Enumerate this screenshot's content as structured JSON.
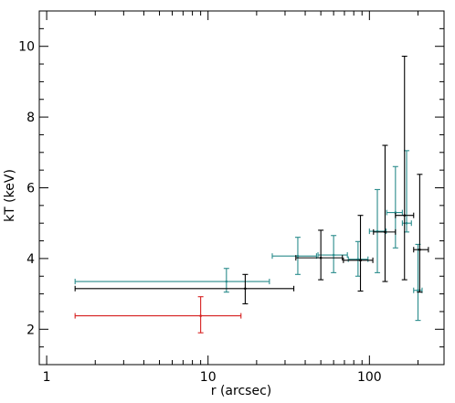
{
  "chart_data": {
    "type": "scatter",
    "title": "",
    "xlabel": "r (arcsec)",
    "ylabel": "kT (keV)",
    "xscale": "log",
    "xlim": [
      0.9,
      290
    ],
    "ylim": [
      1.0,
      11.0
    ],
    "x_ticks": [
      1,
      10,
      100
    ],
    "x_tick_labels": [
      "1",
      "10",
      "100"
    ],
    "y_ticks": [
      2,
      4,
      6,
      8,
      10
    ],
    "y_tick_labels": [
      "2",
      "4",
      "6",
      "8",
      "10"
    ],
    "grid": false,
    "legend": "none",
    "series": [
      {
        "color": "#d62020",
        "points": [
          {
            "x": 9.0,
            "xlo": 1.5,
            "xhi": 16.0,
            "y": 2.38,
            "ylo": 1.9,
            "yhi": 2.92
          }
        ]
      },
      {
        "color": "#2a8c8c",
        "points": [
          {
            "x": 13.0,
            "xlo": 1.5,
            "xhi": 24.0,
            "y": 3.35,
            "ylo": 3.05,
            "yhi": 3.72
          },
          {
            "x": 36.0,
            "xlo": 25.0,
            "xhi": 47.0,
            "y": 4.07,
            "ylo": 3.55,
            "yhi": 4.6
          },
          {
            "x": 60.0,
            "xlo": 48.0,
            "xhi": 73.0,
            "y": 4.1,
            "ylo": 3.6,
            "yhi": 4.65
          },
          {
            "x": 85.0,
            "xlo": 74.0,
            "xhi": 98.0,
            "y": 3.98,
            "ylo": 3.5,
            "yhi": 4.48
          },
          {
            "x": 112.0,
            "xlo": 100.0,
            "xhi": 127.0,
            "y": 4.77,
            "ylo": 3.6,
            "yhi": 5.95
          },
          {
            "x": 145.0,
            "xlo": 128.0,
            "xhi": 160.0,
            "y": 5.3,
            "ylo": 4.3,
            "yhi": 6.6
          },
          {
            "x": 170.0,
            "xlo": 160.0,
            "xhi": 182.0,
            "y": 5.0,
            "ylo": 4.75,
            "yhi": 7.05
          },
          {
            "x": 200.0,
            "xlo": 188.0,
            "xhi": 212.0,
            "y": 3.1,
            "ylo": 2.25,
            "yhi": 4.4
          }
        ]
      },
      {
        "color": "#000000",
        "points": [
          {
            "x": 17.0,
            "xlo": 1.5,
            "xhi": 34.0,
            "y": 3.15,
            "ylo": 2.72,
            "yhi": 3.55
          },
          {
            "x": 50.0,
            "xlo": 35.0,
            "xhi": 68.0,
            "y": 4.02,
            "ylo": 3.4,
            "yhi": 4.8
          },
          {
            "x": 88.0,
            "xlo": 69.0,
            "xhi": 105.0,
            "y": 3.95,
            "ylo": 3.08,
            "yhi": 5.22
          },
          {
            "x": 125.0,
            "xlo": 106.0,
            "xhi": 145.0,
            "y": 4.75,
            "ylo": 3.35,
            "yhi": 7.2
          },
          {
            "x": 165.0,
            "xlo": 145.0,
            "xhi": 188.0,
            "y": 5.22,
            "ylo": 3.4,
            "yhi": 9.72
          },
          {
            "x": 205.0,
            "xlo": 188.0,
            "xhi": 232.0,
            "y": 4.25,
            "ylo": 3.05,
            "yhi": 6.38
          }
        ]
      }
    ]
  }
}
